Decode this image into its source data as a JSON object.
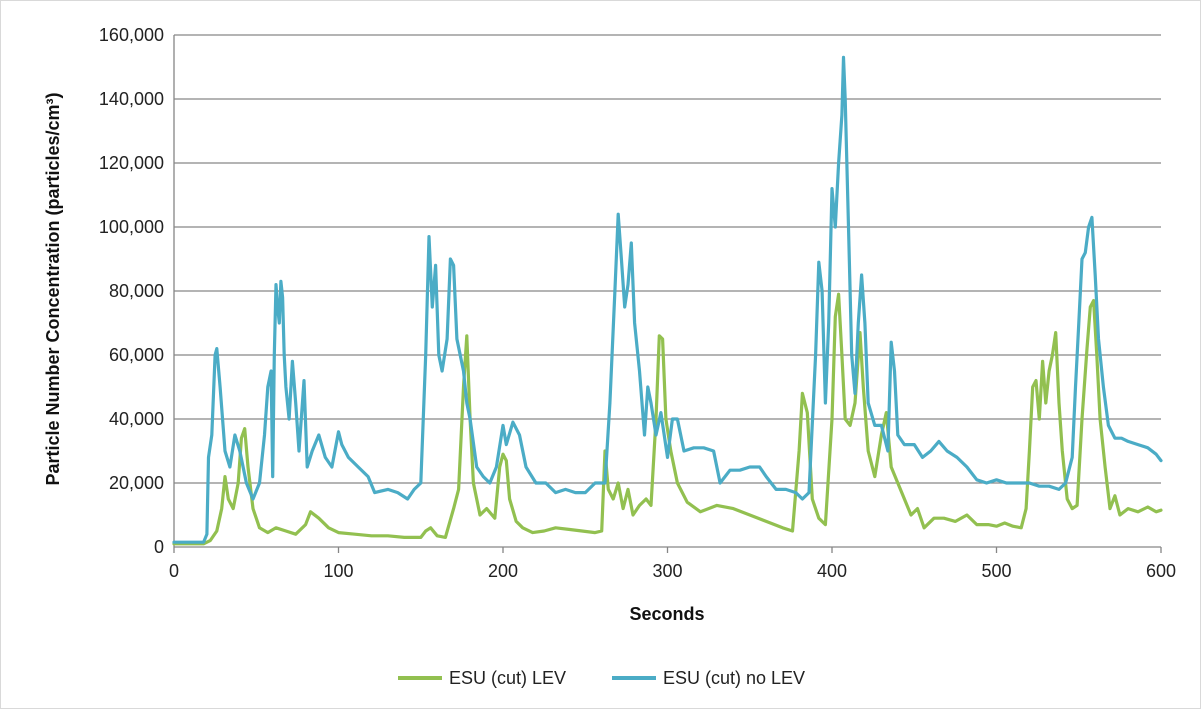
{
  "chart_data": {
    "type": "line",
    "title": "",
    "xlabel": "Seconds",
    "ylabel": "Particle Number Concentration (particles/cm³)",
    "xlim": [
      0,
      600
    ],
    "ylim": [
      0,
      160000
    ],
    "x_ticks": [
      0,
      100,
      200,
      300,
      400,
      500,
      600
    ],
    "y_ticks": [
      0,
      20000,
      40000,
      60000,
      80000,
      100000,
      120000,
      140000,
      160000
    ],
    "x_tick_labels": [
      "0",
      "100",
      "200",
      "300",
      "400",
      "500",
      "600"
    ],
    "y_tick_labels": [
      "0",
      "20,000",
      "40,000",
      "60,000",
      "80,000",
      "100,000",
      "120,000",
      "140,000",
      "160,000"
    ],
    "grid": "horizontal",
    "legend_position": "bottom",
    "series": [
      {
        "name": "ESU (cut) LEV",
        "color": "#92c050",
        "points": [
          [
            0,
            1000
          ],
          [
            10,
            1000
          ],
          [
            18,
            1000
          ],
          [
            22,
            2000
          ],
          [
            26,
            5000
          ],
          [
            29,
            12000
          ],
          [
            31,
            22000
          ],
          [
            33,
            15000
          ],
          [
            36,
            12000
          ],
          [
            39,
            20000
          ],
          [
            41,
            34000
          ],
          [
            43,
            37000
          ],
          [
            45,
            25000
          ],
          [
            48,
            12000
          ],
          [
            52,
            6000
          ],
          [
            57,
            4500
          ],
          [
            62,
            6000
          ],
          [
            68,
            5000
          ],
          [
            74,
            4000
          ],
          [
            80,
            7000
          ],
          [
            83,
            11000
          ],
          [
            88,
            9000
          ],
          [
            94,
            6000
          ],
          [
            100,
            4500
          ],
          [
            110,
            4000
          ],
          [
            120,
            3500
          ],
          [
            130,
            3500
          ],
          [
            140,
            3000
          ],
          [
            150,
            3000
          ],
          [
            153,
            5000
          ],
          [
            156,
            6000
          ],
          [
            160,
            3500
          ],
          [
            165,
            3000
          ],
          [
            170,
            12000
          ],
          [
            173,
            18000
          ],
          [
            176,
            50000
          ],
          [
            178,
            66000
          ],
          [
            180,
            40000
          ],
          [
            182,
            20000
          ],
          [
            186,
            10000
          ],
          [
            190,
            12000
          ],
          [
            195,
            9000
          ],
          [
            198,
            25000
          ],
          [
            200,
            29000
          ],
          [
            202,
            27000
          ],
          [
            204,
            15000
          ],
          [
            208,
            8000
          ],
          [
            212,
            6000
          ],
          [
            218,
            4500
          ],
          [
            225,
            5000
          ],
          [
            232,
            6000
          ],
          [
            240,
            5500
          ],
          [
            248,
            5000
          ],
          [
            256,
            4500
          ],
          [
            260,
            5000
          ],
          [
            262,
            30000
          ],
          [
            264,
            18000
          ],
          [
            267,
            15000
          ],
          [
            270,
            20000
          ],
          [
            273,
            12000
          ],
          [
            276,
            18000
          ],
          [
            279,
            10000
          ],
          [
            283,
            13000
          ],
          [
            287,
            15000
          ],
          [
            290,
            13000
          ],
          [
            293,
            40000
          ],
          [
            295,
            66000
          ],
          [
            297,
            65000
          ],
          [
            299,
            40000
          ],
          [
            302,
            30000
          ],
          [
            306,
            20000
          ],
          [
            312,
            14000
          ],
          [
            320,
            11000
          ],
          [
            330,
            13000
          ],
          [
            340,
            12000
          ],
          [
            350,
            10000
          ],
          [
            360,
            8000
          ],
          [
            370,
            6000
          ],
          [
            376,
            5000
          ],
          [
            380,
            30000
          ],
          [
            382,
            48000
          ],
          [
            385,
            42000
          ],
          [
            388,
            15000
          ],
          [
            392,
            9000
          ],
          [
            396,
            7000
          ],
          [
            400,
            40000
          ],
          [
            402,
            72000
          ],
          [
            404,
            79000
          ],
          [
            406,
            60000
          ],
          [
            408,
            40000
          ],
          [
            411,
            38000
          ],
          [
            414,
            45000
          ],
          [
            417,
            67000
          ],
          [
            419,
            50000
          ],
          [
            422,
            30000
          ],
          [
            426,
            22000
          ],
          [
            430,
            35000
          ],
          [
            433,
            42000
          ],
          [
            436,
            25000
          ],
          [
            440,
            20000
          ],
          [
            444,
            15000
          ],
          [
            448,
            10000
          ],
          [
            452,
            12000
          ],
          [
            456,
            6000
          ],
          [
            462,
            9000
          ],
          [
            468,
            9000
          ],
          [
            475,
            8000
          ],
          [
            482,
            10000
          ],
          [
            488,
            7000
          ],
          [
            495,
            7000
          ],
          [
            500,
            6500
          ],
          [
            505,
            7500
          ],
          [
            510,
            6500
          ],
          [
            515,
            6000
          ],
          [
            518,
            12000
          ],
          [
            520,
            30000
          ],
          [
            522,
            50000
          ],
          [
            524,
            52000
          ],
          [
            526,
            40000
          ],
          [
            528,
            58000
          ],
          [
            530,
            45000
          ],
          [
            532,
            55000
          ],
          [
            534,
            60000
          ],
          [
            536,
            67000
          ],
          [
            538,
            45000
          ],
          [
            540,
            30000
          ],
          [
            543,
            15000
          ],
          [
            546,
            12000
          ],
          [
            549,
            13000
          ],
          [
            552,
            40000
          ],
          [
            555,
            62000
          ],
          [
            557,
            75000
          ],
          [
            559,
            77000
          ],
          [
            561,
            60000
          ],
          [
            563,
            40000
          ],
          [
            566,
            25000
          ],
          [
            569,
            12000
          ],
          [
            572,
            16000
          ],
          [
            575,
            10000
          ],
          [
            580,
            12000
          ],
          [
            586,
            11000
          ],
          [
            592,
            12500
          ],
          [
            597,
            11000
          ],
          [
            600,
            11500
          ]
        ]
      },
      {
        "name": "ESU (cut) no LEV",
        "color": "#4bacc6",
        "points": [
          [
            0,
            1500
          ],
          [
            10,
            1500
          ],
          [
            18,
            1500
          ],
          [
            20,
            4000
          ],
          [
            21,
            28000
          ],
          [
            23,
            35000
          ],
          [
            25,
            60000
          ],
          [
            26,
            62000
          ],
          [
            28,
            50000
          ],
          [
            31,
            30000
          ],
          [
            34,
            25000
          ],
          [
            37,
            35000
          ],
          [
            40,
            30000
          ],
          [
            44,
            20000
          ],
          [
            48,
            15000
          ],
          [
            52,
            20000
          ],
          [
            55,
            35000
          ],
          [
            57,
            50000
          ],
          [
            59,
            55000
          ],
          [
            60,
            22000
          ],
          [
            61,
            60000
          ],
          [
            62,
            82000
          ],
          [
            63,
            75000
          ],
          [
            64,
            70000
          ],
          [
            65,
            83000
          ],
          [
            66,
            78000
          ],
          [
            67,
            60000
          ],
          [
            68,
            50000
          ],
          [
            70,
            40000
          ],
          [
            72,
            58000
          ],
          [
            74,
            45000
          ],
          [
            76,
            30000
          ],
          [
            79,
            52000
          ],
          [
            81,
            25000
          ],
          [
            84,
            30000
          ],
          [
            88,
            35000
          ],
          [
            92,
            28000
          ],
          [
            96,
            25000
          ],
          [
            100,
            36000
          ],
          [
            102,
            32000
          ],
          [
            106,
            28000
          ],
          [
            112,
            25000
          ],
          [
            118,
            22000
          ],
          [
            122,
            17000
          ],
          [
            130,
            18000
          ],
          [
            136,
            17000
          ],
          [
            142,
            15000
          ],
          [
            146,
            18000
          ],
          [
            150,
            20000
          ],
          [
            153,
            60000
          ],
          [
            155,
            97000
          ],
          [
            157,
            75000
          ],
          [
            159,
            88000
          ],
          [
            161,
            60000
          ],
          [
            163,
            55000
          ],
          [
            166,
            65000
          ],
          [
            168,
            90000
          ],
          [
            170,
            88000
          ],
          [
            172,
            65000
          ],
          [
            174,
            60000
          ],
          [
            176,
            55000
          ],
          [
            178,
            45000
          ],
          [
            180,
            40000
          ],
          [
            184,
            25000
          ],
          [
            188,
            22000
          ],
          [
            192,
            20000
          ],
          [
            196,
            25000
          ],
          [
            200,
            38000
          ],
          [
            202,
            32000
          ],
          [
            206,
            39000
          ],
          [
            210,
            35000
          ],
          [
            214,
            25000
          ],
          [
            220,
            20000
          ],
          [
            226,
            20000
          ],
          [
            232,
            17000
          ],
          [
            238,
            18000
          ],
          [
            244,
            17000
          ],
          [
            250,
            17000
          ],
          [
            256,
            20000
          ],
          [
            262,
            20000
          ],
          [
            265,
            45000
          ],
          [
            268,
            80000
          ],
          [
            270,
            104000
          ],
          [
            272,
            90000
          ],
          [
            274,
            75000
          ],
          [
            276,
            82000
          ],
          [
            278,
            95000
          ],
          [
            280,
            70000
          ],
          [
            283,
            55000
          ],
          [
            286,
            35000
          ],
          [
            288,
            50000
          ],
          [
            290,
            45000
          ],
          [
            293,
            35000
          ],
          [
            296,
            42000
          ],
          [
            298,
            35000
          ],
          [
            300,
            28000
          ],
          [
            303,
            40000
          ],
          [
            306,
            40000
          ],
          [
            310,
            30000
          ],
          [
            316,
            31000
          ],
          [
            322,
            31000
          ],
          [
            328,
            30000
          ],
          [
            332,
            20000
          ],
          [
            338,
            24000
          ],
          [
            344,
            24000
          ],
          [
            350,
            25000
          ],
          [
            356,
            25000
          ],
          [
            360,
            22000
          ],
          [
            366,
            18000
          ],
          [
            372,
            18000
          ],
          [
            378,
            17000
          ],
          [
            382,
            15000
          ],
          [
            386,
            17000
          ],
          [
            390,
            60000
          ],
          [
            392,
            89000
          ],
          [
            394,
            80000
          ],
          [
            396,
            45000
          ],
          [
            398,
            70000
          ],
          [
            400,
            112000
          ],
          [
            402,
            100000
          ],
          [
            404,
            120000
          ],
          [
            406,
            135000
          ],
          [
            407,
            153000
          ],
          [
            408,
            140000
          ],
          [
            410,
            100000
          ],
          [
            412,
            60000
          ],
          [
            414,
            48000
          ],
          [
            416,
            70000
          ],
          [
            418,
            85000
          ],
          [
            420,
            70000
          ],
          [
            422,
            45000
          ],
          [
            426,
            38000
          ],
          [
            430,
            38000
          ],
          [
            434,
            30000
          ],
          [
            436,
            64000
          ],
          [
            438,
            55000
          ],
          [
            440,
            35000
          ],
          [
            444,
            32000
          ],
          [
            450,
            32000
          ],
          [
            455,
            28000
          ],
          [
            460,
            30000
          ],
          [
            465,
            33000
          ],
          [
            470,
            30000
          ],
          [
            476,
            28000
          ],
          [
            482,
            25000
          ],
          [
            488,
            21000
          ],
          [
            494,
            20000
          ],
          [
            500,
            21000
          ],
          [
            506,
            20000
          ],
          [
            512,
            20000
          ],
          [
            520,
            20000
          ],
          [
            526,
            19000
          ],
          [
            532,
            19000
          ],
          [
            538,
            18000
          ],
          [
            542,
            20000
          ],
          [
            546,
            28000
          ],
          [
            548,
            50000
          ],
          [
            550,
            70000
          ],
          [
            552,
            90000
          ],
          [
            554,
            92000
          ],
          [
            556,
            100000
          ],
          [
            558,
            103000
          ],
          [
            560,
            85000
          ],
          [
            562,
            65000
          ],
          [
            565,
            50000
          ],
          [
            568,
            38000
          ],
          [
            572,
            34000
          ],
          [
            576,
            34000
          ],
          [
            580,
            33000
          ],
          [
            586,
            32000
          ],
          [
            592,
            31000
          ],
          [
            597,
            29000
          ],
          [
            600,
            27000
          ]
        ]
      }
    ]
  }
}
